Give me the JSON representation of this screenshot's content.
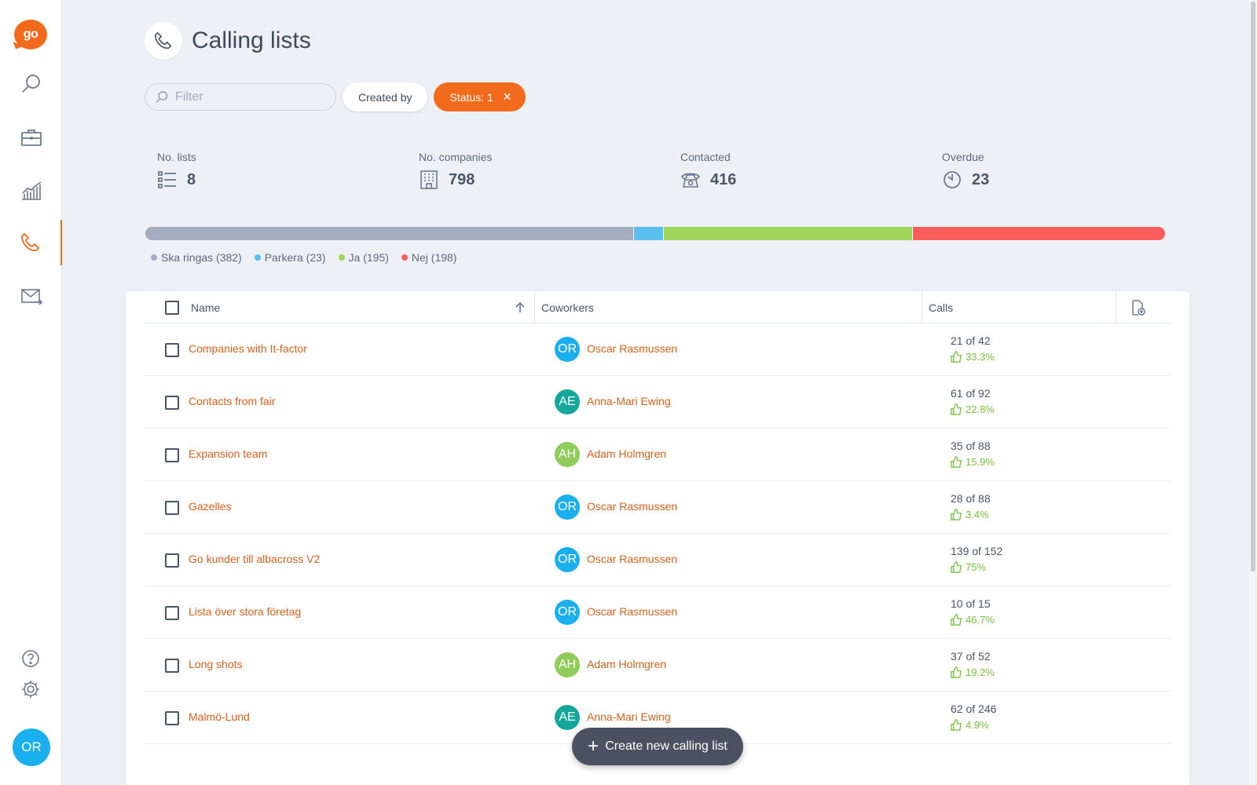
{
  "app": {
    "logo_text": "go",
    "user_initials": "OR"
  },
  "header": {
    "title": "Calling lists"
  },
  "filters": {
    "placeholder": "Filter",
    "created_by": "Created by",
    "status": "Status: 1",
    "status_clear": "✕"
  },
  "stats": [
    {
      "label": "No. lists",
      "value": "8",
      "icon": "list-icon"
    },
    {
      "label": "No. companies",
      "value": "798",
      "icon": "building-icon"
    },
    {
      "label": "Contacted",
      "value": "416",
      "icon": "telephone-icon"
    },
    {
      "label": "Overdue",
      "value": "23",
      "icon": "clock-icon"
    }
  ],
  "progress": {
    "segments": [
      {
        "name": "Ska ringas",
        "count": 382,
        "color": "#a3adbf"
      },
      {
        "name": "Parkera",
        "count": 23,
        "color": "#5bc0f0"
      },
      {
        "name": "Ja",
        "count": 195,
        "color": "#9ed65c"
      },
      {
        "name": "Nej",
        "count": 198,
        "color": "#fb5d5d"
      }
    ],
    "legend": [
      "Ska ringas (382)",
      "Parkera (23)",
      "Ja (195)",
      "Nej (198)"
    ]
  },
  "table": {
    "headers": {
      "name": "Name",
      "coworkers": "Coworkers",
      "calls": "Calls"
    },
    "rows": [
      {
        "name": "Companies with It-factor",
        "initials": "OR",
        "coworker": "Oscar Rasmussen",
        "avatar_color": "#1ab0f0",
        "calls": "21 of 42",
        "rate": "33.3%"
      },
      {
        "name": "Contacts from fair",
        "initials": "AE",
        "coworker": "Anna-Mari Ewing",
        "avatar_color": "#17a69b",
        "calls": "61 of 92",
        "rate": "22.8%"
      },
      {
        "name": "Expansion team",
        "initials": "AH",
        "coworker": "Adam Holmgren",
        "avatar_color": "#8fcc5a",
        "calls": "35 of 88",
        "rate": "15.9%"
      },
      {
        "name": "Gazelles",
        "initials": "OR",
        "coworker": "Oscar Rasmussen",
        "avatar_color": "#1ab0f0",
        "calls": "28 of 88",
        "rate": "3.4%"
      },
      {
        "name": "Go kunder till albacross V2",
        "initials": "OR",
        "coworker": "Oscar Rasmussen",
        "avatar_color": "#1ab0f0",
        "calls": "139 of 152",
        "rate": "75%"
      },
      {
        "name": "Lista över stora företag",
        "initials": "OR",
        "coworker": "Oscar Rasmussen",
        "avatar_color": "#1ab0f0",
        "calls": "10 of 15",
        "rate": "46.7%"
      },
      {
        "name": "Long shots",
        "initials": "AH",
        "coworker": "Adam Holmgren",
        "avatar_color": "#8fcc5a",
        "calls": "37 of 52",
        "rate": "19.2%"
      },
      {
        "name": "Malmö-Lund",
        "initials": "AE",
        "coworker": "Anna-Mari Ewing",
        "avatar_color": "#17a69b",
        "calls": "62 of 246",
        "rate": "4.9%"
      }
    ]
  },
  "fab": {
    "label": "Create new calling list"
  },
  "colors": {
    "accent": "#f26a1b",
    "link": "#d9611e",
    "success": "#7ac142"
  }
}
